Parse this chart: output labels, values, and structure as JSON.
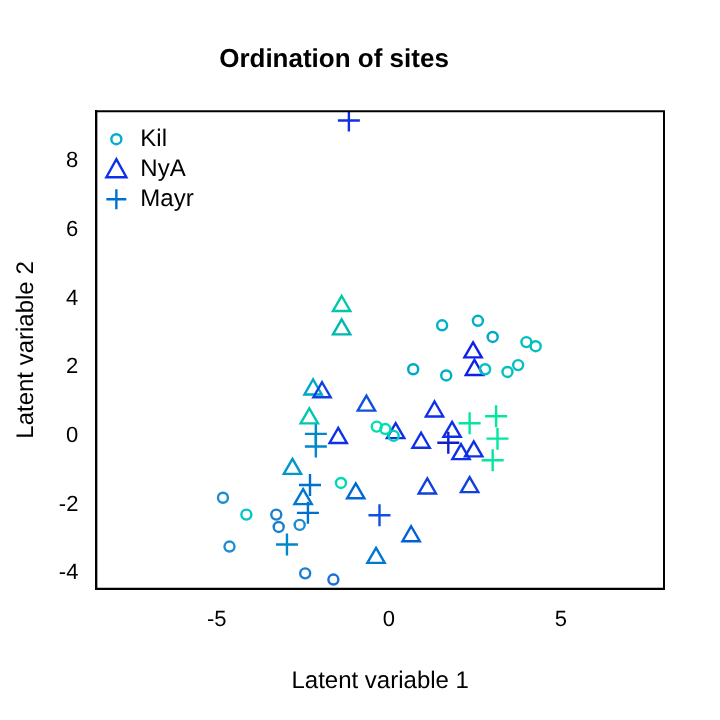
{
  "chart_data": {
    "type": "scatter",
    "title": "Ordination of sites",
    "xlabel": "Latent variable 1",
    "ylabel": "Latent variable 2",
    "xlim": [
      -8.5,
      8
    ],
    "ylim": [
      -4.45,
      9.45
    ],
    "xticks": [
      -5,
      0,
      5
    ],
    "yticks": [
      -4,
      -2,
      0,
      2,
      4,
      6,
      8
    ],
    "grid": false,
    "legend": "top left",
    "series": [
      {
        "name": "Kil",
        "color": "#00b0c8",
        "marker": "circle",
        "x": [
          -4.82,
          -4.14,
          -3.27,
          -3.2,
          -2.59,
          -4.63,
          -2.43,
          -1.61,
          -1.39,
          -0.35,
          -0.1,
          0.14,
          0.71,
          1.55,
          2.59,
          3.02,
          1.67,
          2.8,
          3.45,
          3.76,
          4.0,
          4.27
        ],
        "values": [
          -1.8,
          -2.29,
          -2.29,
          -2.65,
          -2.59,
          -3.22,
          -4.0,
          -4.18,
          -1.37,
          0.27,
          0.2,
          0.0,
          1.94,
          3.22,
          3.35,
          2.88,
          1.76,
          1.94,
          1.86,
          2.06,
          2.73,
          2.61
        ],
        "colors": [
          "#1a8ed0",
          "#00c8c0",
          "#1a7fd0",
          "#1a7fd0",
          "#1a8ed0",
          "#1a8ed0",
          "#1a7fd0",
          "#1a6fd8",
          "#00d8b0",
          "#00e0b0",
          "#00e0b0",
          "#00d0b8",
          "#00a8c8",
          "#00b0c8",
          "#00b0c8",
          "#00a8c8",
          "#00b0c8",
          "#00c0c0",
          "#00c0c0",
          "#00c0c0",
          "#00c0c0",
          "#00c0c0"
        ]
      },
      {
        "name": "NyA",
        "color": "#1030e8",
        "marker": "triangle",
        "x": [
          -1.37,
          -1.37,
          -2.2,
          -1.94,
          -2.31,
          -0.65,
          -1.47,
          -2.8,
          -2.49,
          -0.96,
          0.2,
          0.94,
          1.33,
          1.84,
          2.1,
          2.47,
          2.45,
          2.49,
          1.12,
          2.35,
          0.65,
          -0.37
        ],
        "values": [
          3.78,
          3.1,
          1.35,
          1.27,
          0.51,
          0.88,
          -0.06,
          -0.96,
          -1.84,
          -1.67,
          0.08,
          -0.2,
          0.71,
          0.12,
          -0.53,
          -0.45,
          2.43,
          1.92,
          -1.53,
          -1.49,
          -2.92,
          -3.55
        ],
        "colors": [
          "#00c8a8",
          "#00b8b0",
          "#00a8c8",
          "#1040e0",
          "#00c8b0",
          "#1050e0",
          "#1030e8",
          "#0098c8",
          "#0078d0",
          "#0068d8",
          "#1030e8",
          "#1030e8",
          "#1030e8",
          "#1030e8",
          "#1030e8",
          "#1030e8",
          "#1020e8",
          "#1020e8",
          "#1040e0",
          "#1040e0",
          "#0060d8",
          "#0078d0"
        ]
      },
      {
        "name": "Mayr",
        "color": "#0070d0",
        "marker": "cross",
        "x": [
          -1.16,
          -2.12,
          -2.12,
          -2.29,
          -2.35,
          -2.96,
          -0.27,
          1.73,
          2.35,
          3.12,
          3.16,
          3.02
        ],
        "values": [
          9.18,
          0.06,
          -0.31,
          -1.43,
          -2.24,
          -3.16,
          -2.31,
          -0.2,
          0.37,
          0.57,
          -0.08,
          -0.71
        ],
        "colors": [
          "#1030e0",
          "#0088c8",
          "#0088c8",
          "#0070d0",
          "#0070d0",
          "#0088c8",
          "#1050e0",
          "#1020c8",
          "#00e8a0",
          "#00e8a0",
          "#00e8a0",
          "#00e8a0"
        ]
      }
    ]
  }
}
